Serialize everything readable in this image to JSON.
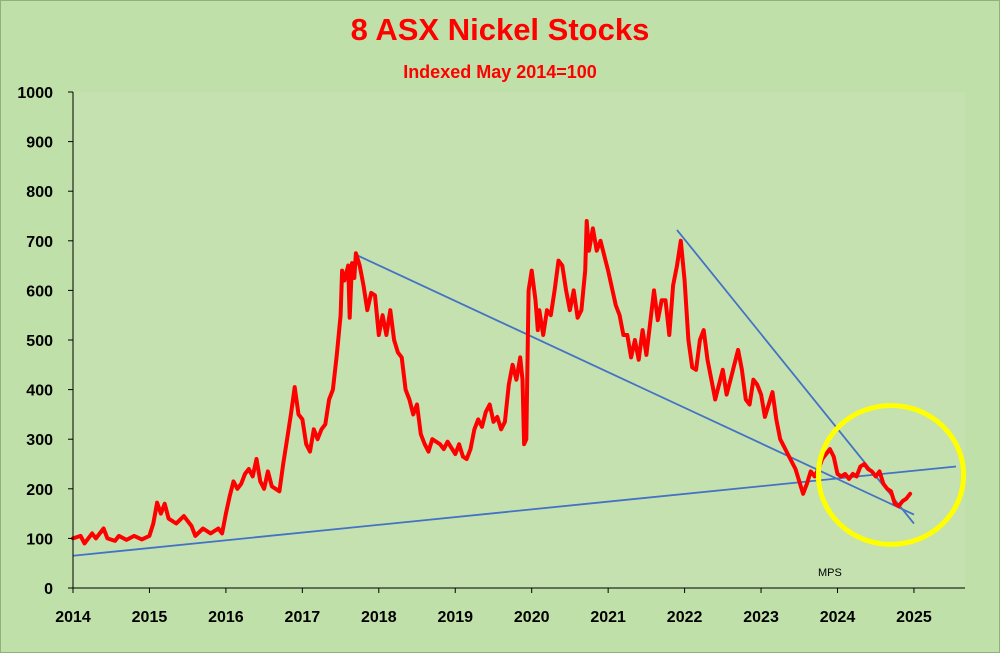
{
  "chart_data": {
    "type": "line",
    "title": "8 ASX Nickel Stocks",
    "subtitle": "Indexed May 2014=100",
    "xlabel": "",
    "ylabel": "",
    "xlim": [
      2014,
      2025.55
    ],
    "ylim": [
      0,
      1000
    ],
    "x_ticks": [
      "2014",
      "2015",
      "2016",
      "2017",
      "2018",
      "2019",
      "2020",
      "2021",
      "2022",
      "2023",
      "2024",
      "2025"
    ],
    "y_ticks": [
      "0",
      "100",
      "200",
      "300",
      "400",
      "500",
      "600",
      "700",
      "800",
      "900",
      "1000"
    ],
    "grid": false,
    "legend": "none",
    "annotation": "MPS",
    "series": [
      {
        "color": "#ff0000",
        "points": [
          [
            2014.0,
            100
          ],
          [
            2014.1,
            105
          ],
          [
            2014.15,
            90
          ],
          [
            2014.25,
            110
          ],
          [
            2014.3,
            100
          ],
          [
            2014.4,
            120
          ],
          [
            2014.45,
            100
          ],
          [
            2014.55,
            95
          ],
          [
            2014.6,
            105
          ],
          [
            2014.7,
            97
          ],
          [
            2014.8,
            105
          ],
          [
            2014.9,
            98
          ],
          [
            2015.0,
            105
          ],
          [
            2015.05,
            130
          ],
          [
            2015.1,
            172
          ],
          [
            2015.15,
            150
          ],
          [
            2015.2,
            170
          ],
          [
            2015.25,
            140
          ],
          [
            2015.35,
            130
          ],
          [
            2015.45,
            145
          ],
          [
            2015.55,
            125
          ],
          [
            2015.6,
            105
          ],
          [
            2015.7,
            120
          ],
          [
            2015.8,
            110
          ],
          [
            2015.9,
            120
          ],
          [
            2015.95,
            110
          ],
          [
            2016.0,
            150
          ],
          [
            2016.05,
            185
          ],
          [
            2016.1,
            215
          ],
          [
            2016.15,
            200
          ],
          [
            2016.2,
            210
          ],
          [
            2016.25,
            230
          ],
          [
            2016.3,
            240
          ],
          [
            2016.35,
            225
          ],
          [
            2016.4,
            260
          ],
          [
            2016.45,
            215
          ],
          [
            2016.5,
            200
          ],
          [
            2016.55,
            235
          ],
          [
            2016.6,
            205
          ],
          [
            2016.7,
            195
          ],
          [
            2016.75,
            250
          ],
          [
            2016.8,
            300
          ],
          [
            2016.85,
            350
          ],
          [
            2016.9,
            405
          ],
          [
            2016.95,
            350
          ],
          [
            2017.0,
            340
          ],
          [
            2017.05,
            290
          ],
          [
            2017.1,
            275
          ],
          [
            2017.15,
            320
          ],
          [
            2017.2,
            300
          ],
          [
            2017.25,
            320
          ],
          [
            2017.3,
            330
          ],
          [
            2017.35,
            380
          ],
          [
            2017.4,
            400
          ],
          [
            2017.45,
            470
          ],
          [
            2017.5,
            550
          ],
          [
            2017.52,
            640
          ],
          [
            2017.55,
            620
          ],
          [
            2017.6,
            650
          ],
          [
            2017.62,
            545
          ],
          [
            2017.65,
            655
          ],
          [
            2017.68,
            625
          ],
          [
            2017.7,
            675
          ],
          [
            2017.75,
            650
          ],
          [
            2017.8,
            610
          ],
          [
            2017.85,
            560
          ],
          [
            2017.9,
            595
          ],
          [
            2017.95,
            590
          ],
          [
            2018.0,
            510
          ],
          [
            2018.05,
            550
          ],
          [
            2018.1,
            510
          ],
          [
            2018.15,
            560
          ],
          [
            2018.2,
            500
          ],
          [
            2018.25,
            475
          ],
          [
            2018.3,
            465
          ],
          [
            2018.35,
            400
          ],
          [
            2018.4,
            380
          ],
          [
            2018.45,
            350
          ],
          [
            2018.5,
            370
          ],
          [
            2018.55,
            310
          ],
          [
            2018.6,
            290
          ],
          [
            2018.65,
            275
          ],
          [
            2018.7,
            300
          ],
          [
            2018.8,
            290
          ],
          [
            2018.85,
            280
          ],
          [
            2018.9,
            295
          ],
          [
            2019.0,
            270
          ],
          [
            2019.05,
            290
          ],
          [
            2019.1,
            265
          ],
          [
            2019.15,
            260
          ],
          [
            2019.2,
            280
          ],
          [
            2019.25,
            320
          ],
          [
            2019.3,
            340
          ],
          [
            2019.35,
            325
          ],
          [
            2019.4,
            355
          ],
          [
            2019.45,
            370
          ],
          [
            2019.5,
            335
          ],
          [
            2019.55,
            345
          ],
          [
            2019.6,
            320
          ],
          [
            2019.65,
            335
          ],
          [
            2019.7,
            410
          ],
          [
            2019.75,
            450
          ],
          [
            2019.8,
            420
          ],
          [
            2019.85,
            465
          ],
          [
            2019.88,
            420
          ],
          [
            2019.9,
            290
          ],
          [
            2019.93,
            300
          ],
          [
            2019.96,
            600
          ],
          [
            2020.0,
            640
          ],
          [
            2020.05,
            580
          ],
          [
            2020.08,
            520
          ],
          [
            2020.1,
            560
          ],
          [
            2020.15,
            510
          ],
          [
            2020.2,
            560
          ],
          [
            2020.25,
            550
          ],
          [
            2020.3,
            600
          ],
          [
            2020.35,
            660
          ],
          [
            2020.4,
            650
          ],
          [
            2020.45,
            600
          ],
          [
            2020.5,
            560
          ],
          [
            2020.55,
            600
          ],
          [
            2020.6,
            545
          ],
          [
            2020.65,
            560
          ],
          [
            2020.7,
            640
          ],
          [
            2020.72,
            740
          ],
          [
            2020.75,
            680
          ],
          [
            2020.8,
            725
          ],
          [
            2020.85,
            680
          ],
          [
            2020.9,
            700
          ],
          [
            2020.95,
            670
          ],
          [
            2021.0,
            640
          ],
          [
            2021.1,
            570
          ],
          [
            2021.15,
            550
          ],
          [
            2021.2,
            510
          ],
          [
            2021.25,
            510
          ],
          [
            2021.3,
            465
          ],
          [
            2021.35,
            500
          ],
          [
            2021.4,
            460
          ],
          [
            2021.45,
            520
          ],
          [
            2021.5,
            470
          ],
          [
            2021.6,
            600
          ],
          [
            2021.65,
            540
          ],
          [
            2021.7,
            580
          ],
          [
            2021.75,
            580
          ],
          [
            2021.8,
            510
          ],
          [
            2021.85,
            610
          ],
          [
            2021.9,
            650
          ],
          [
            2021.95,
            700
          ],
          [
            2022.0,
            620
          ],
          [
            2022.05,
            500
          ],
          [
            2022.1,
            445
          ],
          [
            2022.15,
            440
          ],
          [
            2022.2,
            500
          ],
          [
            2022.25,
            520
          ],
          [
            2022.3,
            460
          ],
          [
            2022.35,
            420
          ],
          [
            2022.4,
            380
          ],
          [
            2022.45,
            410
          ],
          [
            2022.5,
            440
          ],
          [
            2022.55,
            390
          ],
          [
            2022.6,
            420
          ],
          [
            2022.65,
            450
          ],
          [
            2022.7,
            480
          ],
          [
            2022.75,
            440
          ],
          [
            2022.8,
            380
          ],
          [
            2022.85,
            370
          ],
          [
            2022.9,
            420
          ],
          [
            2022.95,
            410
          ],
          [
            2023.0,
            390
          ],
          [
            2023.05,
            345
          ],
          [
            2023.1,
            370
          ],
          [
            2023.15,
            395
          ],
          [
            2023.2,
            340
          ],
          [
            2023.25,
            300
          ],
          [
            2023.3,
            285
          ],
          [
            2023.35,
            270
          ],
          [
            2023.4,
            255
          ],
          [
            2023.45,
            240
          ],
          [
            2023.5,
            215
          ],
          [
            2023.55,
            190
          ],
          [
            2023.6,
            210
          ],
          [
            2023.65,
            235
          ],
          [
            2023.7,
            225
          ],
          [
            2023.75,
            240
          ],
          [
            2023.8,
            260
          ],
          [
            2023.85,
            270
          ],
          [
            2023.9,
            280
          ],
          [
            2023.95,
            265
          ],
          [
            2024.0,
            230
          ],
          [
            2024.05,
            225
          ],
          [
            2024.1,
            230
          ],
          [
            2024.15,
            220
          ],
          [
            2024.2,
            230
          ],
          [
            2024.25,
            225
          ],
          [
            2024.3,
            245
          ],
          [
            2024.35,
            250
          ],
          [
            2024.4,
            240
          ],
          [
            2024.45,
            235
          ],
          [
            2024.5,
            225
          ],
          [
            2024.55,
            235
          ],
          [
            2024.6,
            210
          ],
          [
            2024.65,
            200
          ],
          [
            2024.7,
            195
          ],
          [
            2024.75,
            170
          ],
          [
            2024.8,
            165
          ],
          [
            2024.85,
            175
          ],
          [
            2024.9,
            180
          ],
          [
            2024.95,
            190
          ]
        ]
      }
    ],
    "trendlines": [
      {
        "color": "#4472c4",
        "points": [
          [
            2014.0,
            65
          ],
          [
            2025.55,
            245
          ]
        ]
      },
      {
        "color": "#4472c4",
        "points": [
          [
            2017.7,
            672
          ],
          [
            2025.0,
            148
          ]
        ]
      },
      {
        "color": "#4472c4",
        "points": [
          [
            2021.9,
            722
          ],
          [
            2025.0,
            130
          ]
        ]
      }
    ],
    "highlight_circle": {
      "color": "#ffff00",
      "center": [
        2024.7,
        228
      ],
      "radius_x": 0.95,
      "radius_y": 140
    }
  }
}
